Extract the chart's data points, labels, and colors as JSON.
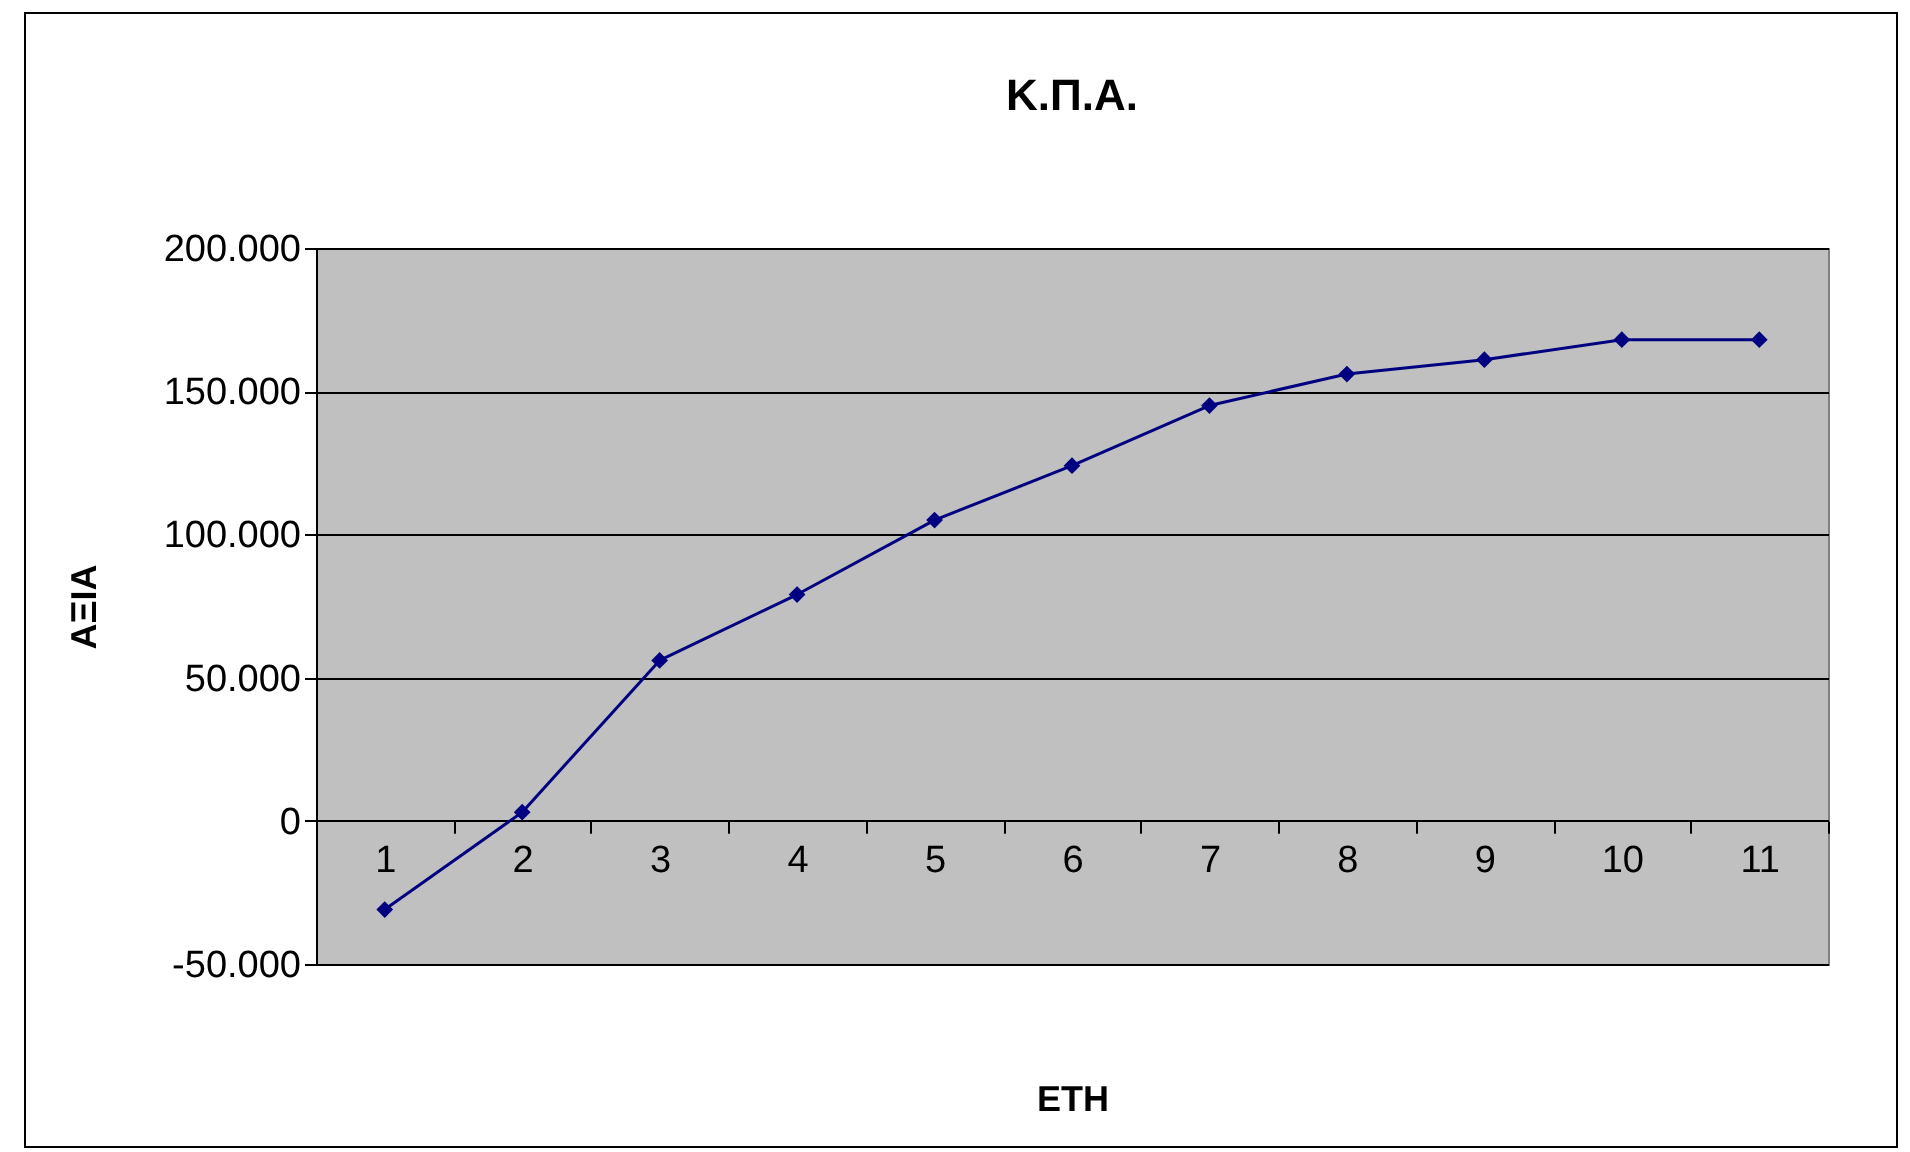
{
  "chart_data": {
    "type": "line",
    "title": "Κ.Π.Α.",
    "xlabel": "ΕΤΗ",
    "ylabel": "ΑΞΙΑ",
    "categories": [
      "1",
      "2",
      "3",
      "4",
      "5",
      "6",
      "7",
      "8",
      "9",
      "10",
      "11"
    ],
    "series": [
      {
        "color": "#000080",
        "values": [
          -31000,
          3000,
          56000,
          79000,
          105000,
          124000,
          145000,
          156000,
          161000,
          168000,
          168000
        ]
      }
    ],
    "ylim": [
      -50000,
      200000
    ],
    "yticks": [
      {
        "value": -50000,
        "label": "-50.000"
      },
      0,
      {
        "value": 50000,
        "label": "50.000"
      },
      {
        "value": 100000,
        "label": "100.000"
      },
      {
        "value": 150000,
        "label": "150.000"
      },
      {
        "value": 200000,
        "label": "200.000"
      }
    ],
    "grid": "y",
    "marker": "diamond",
    "line_style": "solid"
  }
}
